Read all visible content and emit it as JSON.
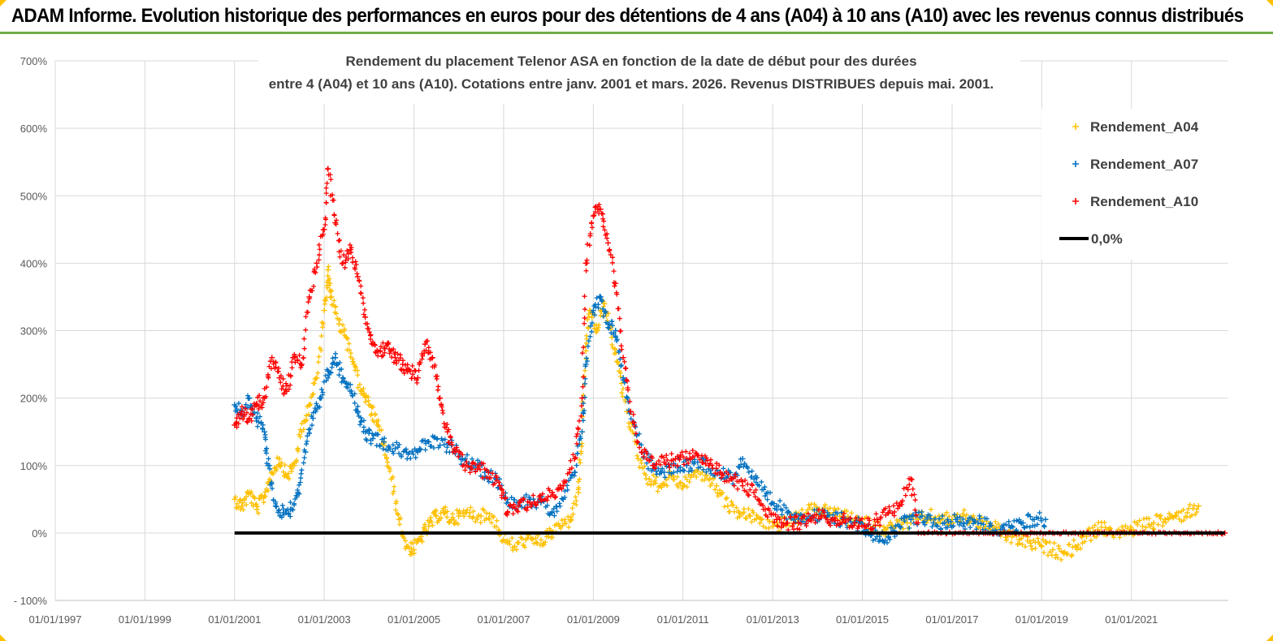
{
  "banner": {
    "title": "ADAM Informe. Evolution historique des performances en euros pour des détentions de 4 ans (A04) à 10 ans (A10) avec les revenus connus distribués"
  },
  "chart_data": {
    "type": "scatter",
    "title_line1": "Rendement du placement Telenor ASA en fonction de la date de début pour des durées",
    "title_line2": "entre 4 (A04) et 10 ans (A10). Cotations entre janv. 2001 et mars. 2026. Revenus DISTRIBUES depuis mai. 2001.",
    "xlim": [
      "1997-01-01",
      "2023-03-01"
    ],
    "ylim": [
      -100,
      700
    ],
    "x_tick_labels": [
      "01/01/1997",
      "01/01/1999",
      "01/01/2001",
      "01/01/2003",
      "01/01/2005",
      "01/01/2007",
      "01/01/2009",
      "01/01/2011",
      "01/01/2013",
      "01/01/2015",
      "01/01/2017",
      "01/01/2019",
      "01/01/2021"
    ],
    "y_tick_labels": [
      "700%",
      "600%",
      "500%",
      "400%",
      "300%",
      "200%",
      "100%",
      "0%",
      "- 100%"
    ],
    "grid": true,
    "legend_position": "top-right",
    "series": [
      {
        "name": "Rendement_A04",
        "color": "#ffc000",
        "marker": "plus",
        "points": [
          [
            "2001-01-01",
            50
          ],
          [
            "2001-03-01",
            40
          ],
          [
            "2001-05-01",
            60
          ],
          [
            "2001-07-01",
            35
          ],
          [
            "2001-09-01",
            55
          ],
          [
            "2001-11-01",
            90
          ],
          [
            "2002-01-01",
            110
          ],
          [
            "2002-03-01",
            85
          ],
          [
            "2002-05-01",
            100
          ],
          [
            "2002-07-01",
            150
          ],
          [
            "2002-09-01",
            190
          ],
          [
            "2002-11-01",
            230
          ],
          [
            "2003-01-01",
            330
          ],
          [
            "2003-02-01",
            390
          ],
          [
            "2003-03-01",
            350
          ],
          [
            "2003-05-01",
            310
          ],
          [
            "2003-07-01",
            290
          ],
          [
            "2003-09-01",
            250
          ],
          [
            "2003-11-01",
            210
          ],
          [
            "2004-01-01",
            190
          ],
          [
            "2004-03-01",
            165
          ],
          [
            "2004-05-01",
            130
          ],
          [
            "2004-07-01",
            80
          ],
          [
            "2004-09-01",
            20
          ],
          [
            "2004-11-01",
            -20
          ],
          [
            "2005-01-01",
            -25
          ],
          [
            "2005-03-01",
            -5
          ],
          [
            "2005-05-01",
            10
          ],
          [
            "2005-07-01",
            25
          ],
          [
            "2005-09-01",
            30
          ],
          [
            "2005-11-01",
            20
          ],
          [
            "2006-01-01",
            25
          ],
          [
            "2006-04-01",
            30
          ],
          [
            "2006-07-01",
            25
          ],
          [
            "2006-10-01",
            25
          ],
          [
            "2007-01-01",
            -10
          ],
          [
            "2007-04-01",
            -20
          ],
          [
            "2007-07-01",
            -10
          ],
          [
            "2007-10-01",
            -15
          ],
          [
            "2008-01-01",
            -5
          ],
          [
            "2008-04-01",
            10
          ],
          [
            "2008-07-01",
            20
          ],
          [
            "2008-09-01",
            60
          ],
          [
            "2008-10-01",
            150
          ],
          [
            "2008-11-01",
            270
          ],
          [
            "2008-12-01",
            330
          ],
          [
            "2009-02-01",
            300
          ],
          [
            "2009-04-01",
            340
          ],
          [
            "2009-06-01",
            290
          ],
          [
            "2009-08-01",
            240
          ],
          [
            "2009-10-01",
            180
          ],
          [
            "2010-01-01",
            110
          ],
          [
            "2010-04-01",
            80
          ],
          [
            "2010-07-01",
            70
          ],
          [
            "2010-10-01",
            85
          ],
          [
            "2011-01-01",
            70
          ],
          [
            "2011-04-01",
            90
          ],
          [
            "2011-07-01",
            85
          ],
          [
            "2011-10-01",
            70
          ],
          [
            "2012-01-01",
            40
          ],
          [
            "2012-04-01",
            30
          ],
          [
            "2012-07-01",
            25
          ],
          [
            "2012-10-01",
            20
          ],
          [
            "2013-01-01",
            10
          ],
          [
            "2013-04-01",
            15
          ],
          [
            "2013-07-01",
            20
          ],
          [
            "2013-10-01",
            30
          ],
          [
            "2014-01-01",
            35
          ],
          [
            "2014-04-01",
            30
          ],
          [
            "2014-07-01",
            25
          ],
          [
            "2014-10-01",
            20
          ],
          [
            "2015-01-01",
            15
          ],
          [
            "2015-04-01",
            10
          ],
          [
            "2015-07-01",
            5
          ],
          [
            "2015-10-01",
            10
          ],
          [
            "2016-01-01",
            15
          ],
          [
            "2016-04-01",
            20
          ],
          [
            "2016-07-01",
            25
          ],
          [
            "2016-10-01",
            20
          ],
          [
            "2017-01-01",
            20
          ],
          [
            "2017-04-01",
            25
          ],
          [
            "2017-07-01",
            20
          ],
          [
            "2017-10-01",
            10
          ],
          [
            "2018-01-01",
            5
          ],
          [
            "2018-04-01",
            -5
          ],
          [
            "2018-07-01",
            -10
          ],
          [
            "2018-10-01",
            -15
          ],
          [
            "2019-01-01",
            -20
          ],
          [
            "2019-04-01",
            -25
          ],
          [
            "2019-07-01",
            -30
          ],
          [
            "2019-10-01",
            -20
          ],
          [
            "2020-01-01",
            -5
          ],
          [
            "2020-04-01",
            5
          ],
          [
            "2020-07-01",
            5
          ],
          [
            "2020-10-01",
            0
          ],
          [
            "2021-01-01",
            5
          ],
          [
            "2021-04-01",
            10
          ],
          [
            "2021-07-01",
            15
          ],
          [
            "2021-10-01",
            20
          ],
          [
            "2022-01-01",
            25
          ],
          [
            "2022-04-01",
            30
          ],
          [
            "2022-07-01",
            40
          ]
        ]
      },
      {
        "name": "Rendement_A07",
        "color": "#0070c0",
        "marker": "plus",
        "points": [
          [
            "2001-01-01",
            190
          ],
          [
            "2001-03-01",
            175
          ],
          [
            "2001-05-01",
            200
          ],
          [
            "2001-07-01",
            170
          ],
          [
            "2001-09-01",
            150
          ],
          [
            "2001-10-01",
            100
          ],
          [
            "2001-12-01",
            40
          ],
          [
            "2002-02-01",
            30
          ],
          [
            "2002-04-01",
            35
          ],
          [
            "2002-06-01",
            60
          ],
          [
            "2002-08-01",
            120
          ],
          [
            "2002-10-01",
            170
          ],
          [
            "2002-12-01",
            200
          ],
          [
            "2003-02-01",
            240
          ],
          [
            "2003-04-01",
            260
          ],
          [
            "2003-06-01",
            230
          ],
          [
            "2003-08-01",
            220
          ],
          [
            "2003-10-01",
            180
          ],
          [
            "2003-12-01",
            150
          ],
          [
            "2004-02-01",
            140
          ],
          [
            "2004-05-01",
            135
          ],
          [
            "2004-08-01",
            125
          ],
          [
            "2004-11-01",
            120
          ],
          [
            "2005-02-01",
            120
          ],
          [
            "2005-05-01",
            135
          ],
          [
            "2005-08-01",
            130
          ],
          [
            "2005-11-01",
            130
          ],
          [
            "2006-02-01",
            110
          ],
          [
            "2006-05-01",
            100
          ],
          [
            "2006-08-01",
            90
          ],
          [
            "2006-11-01",
            80
          ],
          [
            "2007-02-01",
            50
          ],
          [
            "2007-05-01",
            45
          ],
          [
            "2007-08-01",
            50
          ],
          [
            "2007-11-01",
            45
          ],
          [
            "2008-02-01",
            30
          ],
          [
            "2008-05-01",
            50
          ],
          [
            "2008-08-01",
            90
          ],
          [
            "2008-10-01",
            150
          ],
          [
            "2008-11-01",
            250
          ],
          [
            "2009-01-01",
            330
          ],
          [
            "2009-03-01",
            350
          ],
          [
            "2009-05-01",
            310
          ],
          [
            "2009-07-01",
            300
          ],
          [
            "2009-09-01",
            230
          ],
          [
            "2009-11-01",
            180
          ],
          [
            "2010-02-01",
            120
          ],
          [
            "2010-05-01",
            95
          ],
          [
            "2010-08-01",
            90
          ],
          [
            "2010-11-01",
            100
          ],
          [
            "2011-02-01",
            100
          ],
          [
            "2011-05-01",
            105
          ],
          [
            "2011-08-01",
            100
          ],
          [
            "2011-11-01",
            90
          ],
          [
            "2012-02-01",
            80
          ],
          [
            "2012-05-01",
            110
          ],
          [
            "2012-08-01",
            80
          ],
          [
            "2012-11-01",
            55
          ],
          [
            "2013-02-01",
            40
          ],
          [
            "2013-05-01",
            30
          ],
          [
            "2013-08-01",
            25
          ],
          [
            "2013-11-01",
            25
          ],
          [
            "2014-02-01",
            25
          ],
          [
            "2014-05-01",
            20
          ],
          [
            "2014-08-01",
            20
          ],
          [
            "2014-11-01",
            15
          ],
          [
            "2015-02-01",
            5
          ],
          [
            "2015-05-01",
            -5
          ],
          [
            "2015-08-01",
            -5
          ],
          [
            "2015-11-01",
            10
          ],
          [
            "2016-02-01",
            20
          ],
          [
            "2016-05-01",
            25
          ],
          [
            "2016-08-01",
            15
          ],
          [
            "2016-11-01",
            15
          ],
          [
            "2017-02-01",
            20
          ],
          [
            "2017-05-01",
            15
          ],
          [
            "2017-08-01",
            15
          ],
          [
            "2017-11-01",
            10
          ],
          [
            "2018-02-01",
            5
          ],
          [
            "2018-05-01",
            10
          ],
          [
            "2018-08-01",
            15
          ],
          [
            "2018-11-01",
            20
          ],
          [
            "2019-02-01",
            20
          ]
        ]
      },
      {
        "name": "Rendement_A10",
        "color": "#ff0000",
        "marker": "plus",
        "points": [
          [
            "2001-01-01",
            160
          ],
          [
            "2001-03-01",
            180
          ],
          [
            "2001-05-01",
            170
          ],
          [
            "2001-07-01",
            190
          ],
          [
            "2001-09-01",
            200
          ],
          [
            "2001-11-01",
            260
          ],
          [
            "2002-01-01",
            230
          ],
          [
            "2002-03-01",
            210
          ],
          [
            "2002-05-01",
            260
          ],
          [
            "2002-07-01",
            250
          ],
          [
            "2002-09-01",
            350
          ],
          [
            "2002-11-01",
            400
          ],
          [
            "2003-01-01",
            450
          ],
          [
            "2003-02-01",
            540
          ],
          [
            "2003-04-01",
            460
          ],
          [
            "2003-06-01",
            400
          ],
          [
            "2003-08-01",
            420
          ],
          [
            "2003-10-01",
            380
          ],
          [
            "2003-12-01",
            320
          ],
          [
            "2004-02-01",
            280
          ],
          [
            "2004-04-01",
            270
          ],
          [
            "2004-06-01",
            280
          ],
          [
            "2004-08-01",
            260
          ],
          [
            "2004-10-01",
            250
          ],
          [
            "2004-12-01",
            240
          ],
          [
            "2005-02-01",
            230
          ],
          [
            "2005-04-01",
            280
          ],
          [
            "2005-06-01",
            260
          ],
          [
            "2005-08-01",
            200
          ],
          [
            "2005-10-01",
            150
          ],
          [
            "2005-12-01",
            120
          ],
          [
            "2006-03-01",
            100
          ],
          [
            "2006-06-01",
            95
          ],
          [
            "2006-09-01",
            90
          ],
          [
            "2006-12-01",
            70
          ],
          [
            "2007-02-01",
            30
          ],
          [
            "2007-05-01",
            40
          ],
          [
            "2007-08-01",
            45
          ],
          [
            "2007-11-01",
            50
          ],
          [
            "2008-02-01",
            60
          ],
          [
            "2008-05-01",
            70
          ],
          [
            "2008-08-01",
            110
          ],
          [
            "2008-10-01",
            200
          ],
          [
            "2008-11-01",
            400
          ],
          [
            "2009-01-01",
            470
          ],
          [
            "2009-03-01",
            480
          ],
          [
            "2009-05-01",
            430
          ],
          [
            "2009-07-01",
            370
          ],
          [
            "2009-09-01",
            260
          ],
          [
            "2009-11-01",
            180
          ],
          [
            "2010-02-01",
            120
          ],
          [
            "2010-05-01",
            100
          ],
          [
            "2010-08-01",
            105
          ],
          [
            "2010-11-01",
            110
          ],
          [
            "2011-02-01",
            110
          ],
          [
            "2011-05-01",
            115
          ],
          [
            "2011-08-01",
            100
          ],
          [
            "2011-11-01",
            90
          ],
          [
            "2012-02-01",
            80
          ],
          [
            "2012-05-01",
            70
          ],
          [
            "2012-08-01",
            60
          ],
          [
            "2012-11-01",
            35
          ],
          [
            "2013-02-01",
            20
          ],
          [
            "2013-05-01",
            15
          ],
          [
            "2013-08-01",
            15
          ],
          [
            "2013-11-01",
            20
          ],
          [
            "2014-02-01",
            25
          ],
          [
            "2014-05-01",
            20
          ],
          [
            "2014-08-01",
            20
          ],
          [
            "2014-11-01",
            15
          ],
          [
            "2015-02-01",
            10
          ],
          [
            "2015-05-01",
            20
          ],
          [
            "2015-08-01",
            30
          ],
          [
            "2015-11-01",
            40
          ],
          [
            "2016-02-01",
            80
          ],
          [
            "2016-04-01",
            0
          ],
          [
            "2016-10-01",
            0
          ],
          [
            "2017-04-01",
            0
          ],
          [
            "2017-10-01",
            0
          ],
          [
            "2018-04-01",
            0
          ],
          [
            "2018-10-01",
            0
          ],
          [
            "2019-04-01",
            0
          ],
          [
            "2019-10-01",
            0
          ],
          [
            "2020-04-01",
            0
          ],
          [
            "2020-10-01",
            0
          ],
          [
            "2021-04-01",
            0
          ],
          [
            "2021-10-01",
            0
          ],
          [
            "2022-04-01",
            0
          ],
          [
            "2022-10-01",
            0
          ],
          [
            "2023-02-01",
            0
          ]
        ]
      },
      {
        "name": "0,0%",
        "color": "#000000",
        "marker": "line",
        "points": [
          [
            "2001-01-01",
            0
          ],
          [
            "2023-02-01",
            0
          ]
        ]
      }
    ]
  }
}
